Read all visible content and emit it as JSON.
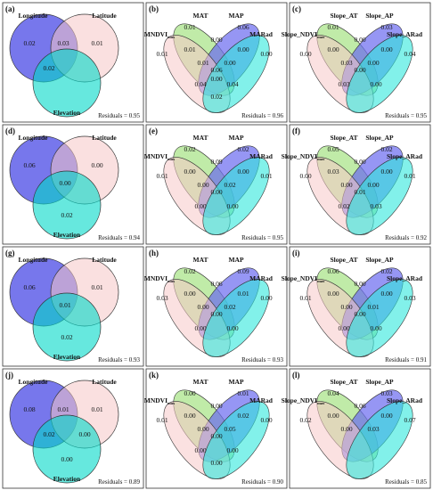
{
  "colors": {
    "set1": "#4a4ae6",
    "set2": "#f5c6c6",
    "set3": "#00d8c8",
    "mat": "#9ee07a",
    "map": "#6a6af0",
    "third_ellipse": "#f7c9c9",
    "fourth_ellipse": "#2ee8dc",
    "mid_overlap": "#b89ae0"
  },
  "panels": [
    {
      "letter": "(a)",
      "type": "venn3",
      "labels": [
        "Longitude",
        "Latitude",
        "Elevation"
      ],
      "values": {
        "a": "0.02",
        "ab": "0.03",
        "b": "0.01",
        "ac": "0.02",
        "abc": "",
        "bc": "",
        "c": "",
        "center": ""
      },
      "residuals": "Residuals = 0.95"
    },
    {
      "letter": "(b)",
      "type": "venn4",
      "labels": [
        "MAT",
        "MAP",
        "MNDVI",
        "MARad"
      ],
      "label_sub": "max",
      "values": [
        "0.01",
        "0.06",
        "0.01",
        "0.00",
        "0.00",
        "0.01",
        "0.00",
        "0.01",
        "0.00",
        "0.06",
        "0.04",
        "0.04",
        "0.02",
        "0.00"
      ],
      "residuals": "Residuals = 0.96"
    },
    {
      "letter": "(c)",
      "type": "venn4",
      "labels": [
        "Slope_AT",
        "Slope_AP",
        "Slope_NDVI",
        "Slope_ARad"
      ],
      "label_sub": "max",
      "values": [
        "0.01",
        "0.03",
        "0.00",
        "0.00",
        "0.04",
        "0.00",
        "0.00",
        "0.03",
        "0.00",
        "0.00",
        "0.03",
        "0.00",
        "",
        ""
      ],
      "residuals": "Residuals = 0.95"
    },
    {
      "letter": "(d)",
      "type": "venn3",
      "labels": [
        "Longitude",
        "Latitude",
        "Elevation"
      ],
      "values": {
        "a": "0.06",
        "ab": "",
        "b": "0.00",
        "ac": "",
        "abc": "0.00",
        "bc": "",
        "c": "0.02",
        "center": ""
      },
      "residuals": "Residuals = 0.94"
    },
    {
      "letter": "(e)",
      "type": "venn4",
      "labels": [
        "MAT",
        "MAP",
        "MNDVI",
        "MARad"
      ],
      "label_sub": "max",
      "values": [
        "0.02",
        "0.02",
        "0.01",
        "0.09",
        "0.01",
        "0.00",
        "0.00",
        "0.00",
        "0.02",
        "0.00",
        "0.00",
        "0.00",
        "",
        ""
      ],
      "residuals": "Residuals = 0.95"
    },
    {
      "letter": "(f)",
      "type": "venn4",
      "labels": [
        "Slope_AT",
        "Slope_AP",
        "Slope_NDVI",
        "Slope_ARad"
      ],
      "label_sub": "max",
      "values": [
        "0.05",
        "0.02",
        "0.00",
        "0.00",
        "0.01",
        "0.03",
        "0.00",
        "0.00",
        "0.00",
        "0.01",
        "0.02",
        "0.03",
        "",
        ""
      ],
      "residuals": "Residuals = 0.92"
    },
    {
      "letter": "(g)",
      "type": "venn3",
      "labels": [
        "Longitude",
        "Latitude",
        "Elevation"
      ],
      "values": {
        "a": "0.06",
        "ab": "",
        "b": "0.01",
        "ac": "",
        "abc": "0.01",
        "bc": "",
        "c": "0.02",
        "center": ""
      },
      "residuals": "Residuals = 0.93"
    },
    {
      "letter": "(h)",
      "type": "venn4",
      "labels": [
        "MAT",
        "MAP",
        "MNDVI",
        "MARad"
      ],
      "label_sub": "max",
      "values": [
        "0.02",
        "0.09",
        "0.03",
        "0.06",
        "0.00",
        "0.00",
        "0.01",
        "0.00",
        "0.02",
        "0.00",
        "0.00",
        "0.00",
        "",
        ""
      ],
      "residuals": "Residuals = 0.93"
    },
    {
      "letter": "(i)",
      "type": "venn4",
      "labels": [
        "Slope_AT",
        "Slope_AP",
        "Slope_NDVI",
        "Slope_ARad"
      ],
      "label_sub": "max",
      "values": [
        "0.06",
        "0.02",
        "0.01",
        "0.00",
        "0.03",
        "0.00",
        "0.00",
        "0.00",
        "0.01",
        "0.00",
        "0.00",
        "0.00",
        "",
        ""
      ],
      "residuals": "Residuals = 0.91"
    },
    {
      "letter": "(j)",
      "type": "venn3",
      "labels": [
        "Longitude",
        "Latitude",
        "Elevation"
      ],
      "values": {
        "a": "0.08",
        "ab": "0.01",
        "b": "0.01",
        "ac": "0.02",
        "abc": "",
        "bc": "0.00",
        "c": "0.00",
        "center": ""
      },
      "residuals": "Residuals = 0.89"
    },
    {
      "letter": "(k)",
      "type": "venn4",
      "labels": [
        "MAT",
        "MAP",
        "MNDVI",
        "MARad"
      ],
      "label_sub": "max",
      "values": [
        "0.00",
        "0.01",
        "0.01",
        "0.00",
        "0.00",
        "0.00",
        "0.02",
        "0.00",
        "0.05",
        "0.00",
        "0.00",
        "0.00",
        "0.00",
        ""
      ],
      "residuals": "Residuals = 0.90"
    },
    {
      "letter": "(l)",
      "type": "venn4",
      "labels": [
        "Slope_AT",
        "Slope_AP",
        "Slope_NDVI",
        "Slope_ARad"
      ],
      "label_sub": "max",
      "values": [
        "0.04",
        "0.03",
        "0.02",
        "0.06",
        "0.07",
        "0.00",
        "0.00",
        "0.00",
        "0.03",
        "",
        "",
        "",
        "",
        ""
      ],
      "residuals": "Residuals = 0.85"
    }
  ]
}
